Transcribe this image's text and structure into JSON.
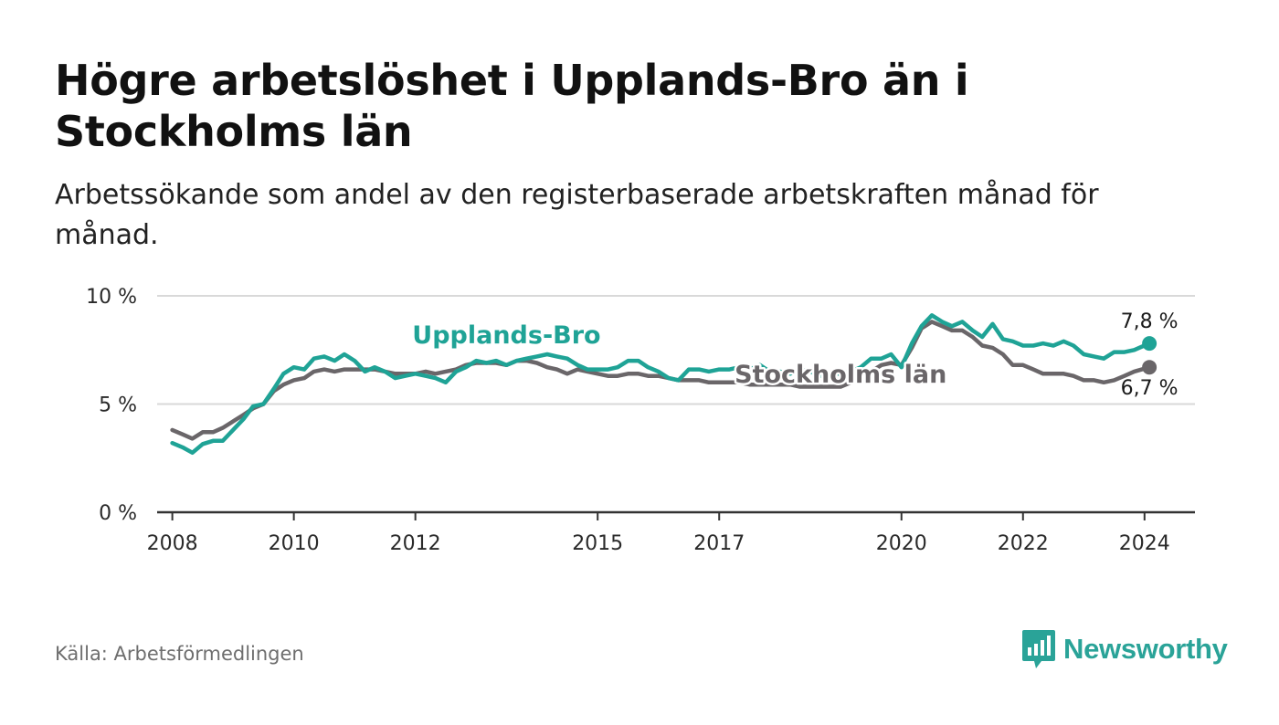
{
  "title": "Högre arbetslöshet i Upplands-Bro än i Stockholms län",
  "subtitle": "Arbetssökande som andel av den registerbaserade arbetskraften månad för månad.",
  "source": "Källa: Arbetsförmedlingen",
  "brand": {
    "name": "Newsworthy",
    "color": "#2aa398",
    "icon": "bar-chart-speech-bubble-icon"
  },
  "chart_data": {
    "type": "line",
    "title": "Högre arbetslöshet i Upplands-Bro än i Stockholms län",
    "xlabel": "",
    "ylabel": "",
    "xlim": [
      2007.75,
      2024.83
    ],
    "ylim": [
      0,
      10
    ],
    "y_ticks": [
      {
        "value": 0,
        "label": "0 %"
      },
      {
        "value": 5,
        "label": "5 %"
      },
      {
        "value": 10,
        "label": "10 %"
      }
    ],
    "x_ticks": [
      {
        "value": 2008,
        "label": "2008"
      },
      {
        "value": 2010,
        "label": "2010"
      },
      {
        "value": 2012,
        "label": "2012"
      },
      {
        "value": 2015,
        "label": "2015"
      },
      {
        "value": 2017,
        "label": "2017"
      },
      {
        "value": 2020,
        "label": "2020"
      },
      {
        "value": 2022,
        "label": "2022"
      },
      {
        "value": 2024,
        "label": "2024"
      }
    ],
    "grid": true,
    "series": [
      {
        "name": "Upplands-Bro",
        "color": "#1fa396",
        "end_label": "7,8 %",
        "points": [
          [
            2008.0,
            3.2
          ],
          [
            2008.17,
            3.0
          ],
          [
            2008.33,
            2.75
          ],
          [
            2008.5,
            3.15
          ],
          [
            2008.67,
            3.3
          ],
          [
            2008.83,
            3.3
          ],
          [
            2009.0,
            3.8
          ],
          [
            2009.17,
            4.3
          ],
          [
            2009.33,
            4.9
          ],
          [
            2009.5,
            5.0
          ],
          [
            2009.67,
            5.7
          ],
          [
            2009.83,
            6.4
          ],
          [
            2010.0,
            6.7
          ],
          [
            2010.17,
            6.6
          ],
          [
            2010.33,
            7.1
          ],
          [
            2010.5,
            7.2
          ],
          [
            2010.67,
            7.0
          ],
          [
            2010.83,
            7.3
          ],
          [
            2011.0,
            7.0
          ],
          [
            2011.17,
            6.5
          ],
          [
            2011.33,
            6.7
          ],
          [
            2011.5,
            6.5
          ],
          [
            2011.67,
            6.2
          ],
          [
            2011.83,
            6.3
          ],
          [
            2012.0,
            6.4
          ],
          [
            2012.17,
            6.3
          ],
          [
            2012.33,
            6.2
          ],
          [
            2012.5,
            6.0
          ],
          [
            2012.67,
            6.5
          ],
          [
            2012.83,
            6.7
          ],
          [
            2013.0,
            7.0
          ],
          [
            2013.17,
            6.9
          ],
          [
            2013.33,
            7.0
          ],
          [
            2013.5,
            6.8
          ],
          [
            2013.67,
            7.0
          ],
          [
            2013.83,
            7.1
          ],
          [
            2014.0,
            7.2
          ],
          [
            2014.17,
            7.3
          ],
          [
            2014.33,
            7.2
          ],
          [
            2014.5,
            7.1
          ],
          [
            2014.67,
            6.8
          ],
          [
            2014.83,
            6.6
          ],
          [
            2015.0,
            6.6
          ],
          [
            2015.17,
            6.6
          ],
          [
            2015.33,
            6.7
          ],
          [
            2015.5,
            7.0
          ],
          [
            2015.67,
            7.0
          ],
          [
            2015.83,
            6.7
          ],
          [
            2016.0,
            6.5
          ],
          [
            2016.17,
            6.2
          ],
          [
            2016.33,
            6.1
          ],
          [
            2016.5,
            6.6
          ],
          [
            2016.67,
            6.6
          ],
          [
            2016.83,
            6.5
          ],
          [
            2017.0,
            6.6
          ],
          [
            2017.17,
            6.6
          ],
          [
            2017.33,
            6.7
          ],
          [
            2017.5,
            6.6
          ],
          [
            2017.67,
            6.8
          ],
          [
            2017.83,
            6.5
          ],
          [
            2018.0,
            6.5
          ],
          [
            2018.17,
            6.4
          ],
          [
            2018.33,
            6.6
          ],
          [
            2018.5,
            6.5
          ],
          [
            2018.67,
            6.3
          ],
          [
            2018.83,
            6.4
          ],
          [
            2019.0,
            6.4
          ],
          [
            2019.17,
            6.5
          ],
          [
            2019.33,
            6.7
          ],
          [
            2019.5,
            7.1
          ],
          [
            2019.67,
            7.1
          ],
          [
            2019.83,
            7.3
          ],
          [
            2020.0,
            6.7
          ],
          [
            2020.17,
            7.8
          ],
          [
            2020.33,
            8.6
          ],
          [
            2020.5,
            9.1
          ],
          [
            2020.67,
            8.8
          ],
          [
            2020.83,
            8.6
          ],
          [
            2021.0,
            8.8
          ],
          [
            2021.17,
            8.4
          ],
          [
            2021.33,
            8.1
          ],
          [
            2021.5,
            8.7
          ],
          [
            2021.67,
            8.0
          ],
          [
            2021.83,
            7.9
          ],
          [
            2022.0,
            7.7
          ],
          [
            2022.17,
            7.7
          ],
          [
            2022.33,
            7.8
          ],
          [
            2022.5,
            7.7
          ],
          [
            2022.67,
            7.9
          ],
          [
            2022.83,
            7.7
          ],
          [
            2023.0,
            7.3
          ],
          [
            2023.17,
            7.2
          ],
          [
            2023.33,
            7.1
          ],
          [
            2023.5,
            7.4
          ],
          [
            2023.67,
            7.4
          ],
          [
            2023.83,
            7.5
          ],
          [
            2024.08,
            7.8
          ]
        ]
      },
      {
        "name": "Stockholms län",
        "color": "#6a6669",
        "end_label": "6,7 %",
        "points": [
          [
            2008.0,
            3.8
          ],
          [
            2008.17,
            3.6
          ],
          [
            2008.33,
            3.4
          ],
          [
            2008.5,
            3.7
          ],
          [
            2008.67,
            3.7
          ],
          [
            2008.83,
            3.9
          ],
          [
            2009.0,
            4.2
          ],
          [
            2009.17,
            4.5
          ],
          [
            2009.33,
            4.8
          ],
          [
            2009.5,
            5.0
          ],
          [
            2009.67,
            5.6
          ],
          [
            2009.83,
            5.9
          ],
          [
            2010.0,
            6.1
          ],
          [
            2010.17,
            6.2
          ],
          [
            2010.33,
            6.5
          ],
          [
            2010.5,
            6.6
          ],
          [
            2010.67,
            6.5
          ],
          [
            2010.83,
            6.6
          ],
          [
            2011.0,
            6.6
          ],
          [
            2011.17,
            6.6
          ],
          [
            2011.33,
            6.6
          ],
          [
            2011.5,
            6.5
          ],
          [
            2011.67,
            6.4
          ],
          [
            2011.83,
            6.4
          ],
          [
            2012.0,
            6.4
          ],
          [
            2012.17,
            6.5
          ],
          [
            2012.33,
            6.4
          ],
          [
            2012.5,
            6.5
          ],
          [
            2012.67,
            6.6
          ],
          [
            2012.83,
            6.8
          ],
          [
            2013.0,
            6.9
          ],
          [
            2013.17,
            6.9
          ],
          [
            2013.33,
            6.9
          ],
          [
            2013.5,
            6.8
          ],
          [
            2013.67,
            7.0
          ],
          [
            2013.83,
            7.0
          ],
          [
            2014.0,
            6.9
          ],
          [
            2014.17,
            6.7
          ],
          [
            2014.33,
            6.6
          ],
          [
            2014.5,
            6.4
          ],
          [
            2014.67,
            6.6
          ],
          [
            2014.83,
            6.5
          ],
          [
            2015.0,
            6.4
          ],
          [
            2015.17,
            6.3
          ],
          [
            2015.33,
            6.3
          ],
          [
            2015.5,
            6.4
          ],
          [
            2015.67,
            6.4
          ],
          [
            2015.83,
            6.3
          ],
          [
            2016.0,
            6.3
          ],
          [
            2016.17,
            6.2
          ],
          [
            2016.33,
            6.1
          ],
          [
            2016.5,
            6.1
          ],
          [
            2016.67,
            6.1
          ],
          [
            2016.83,
            6.0
          ],
          [
            2017.0,
            6.0
          ],
          [
            2017.17,
            6.0
          ],
          [
            2017.33,
            6.0
          ],
          [
            2017.5,
            5.9
          ],
          [
            2017.67,
            5.9
          ],
          [
            2017.83,
            5.9
          ],
          [
            2018.0,
            5.9
          ],
          [
            2018.17,
            5.9
          ],
          [
            2018.33,
            5.8
          ],
          [
            2018.5,
            5.8
          ],
          [
            2018.67,
            5.8
          ],
          [
            2018.83,
            5.8
          ],
          [
            2019.0,
            5.8
          ],
          [
            2019.17,
            6.0
          ],
          [
            2019.33,
            6.2
          ],
          [
            2019.5,
            6.5
          ],
          [
            2019.67,
            6.8
          ],
          [
            2019.83,
            6.9
          ],
          [
            2020.0,
            6.8
          ],
          [
            2020.17,
            7.6
          ],
          [
            2020.33,
            8.5
          ],
          [
            2020.5,
            8.8
          ],
          [
            2020.67,
            8.6
          ],
          [
            2020.83,
            8.4
          ],
          [
            2021.0,
            8.4
          ],
          [
            2021.17,
            8.1
          ],
          [
            2021.33,
            7.7
          ],
          [
            2021.5,
            7.6
          ],
          [
            2021.67,
            7.3
          ],
          [
            2021.83,
            6.8
          ],
          [
            2022.0,
            6.8
          ],
          [
            2022.17,
            6.6
          ],
          [
            2022.33,
            6.4
          ],
          [
            2022.5,
            6.4
          ],
          [
            2022.67,
            6.4
          ],
          [
            2022.83,
            6.3
          ],
          [
            2023.0,
            6.1
          ],
          [
            2023.17,
            6.1
          ],
          [
            2023.33,
            6.0
          ],
          [
            2023.5,
            6.1
          ],
          [
            2023.67,
            6.3
          ],
          [
            2023.83,
            6.5
          ],
          [
            2024.08,
            6.7
          ]
        ]
      }
    ],
    "annotations": [
      {
        "text": "Upplands-Bro",
        "series": 0,
        "x": 2013.5,
        "y": 7.8
      },
      {
        "text": "Stockholms län",
        "series": 1,
        "x": 2019.0,
        "y": 6.0
      }
    ]
  }
}
